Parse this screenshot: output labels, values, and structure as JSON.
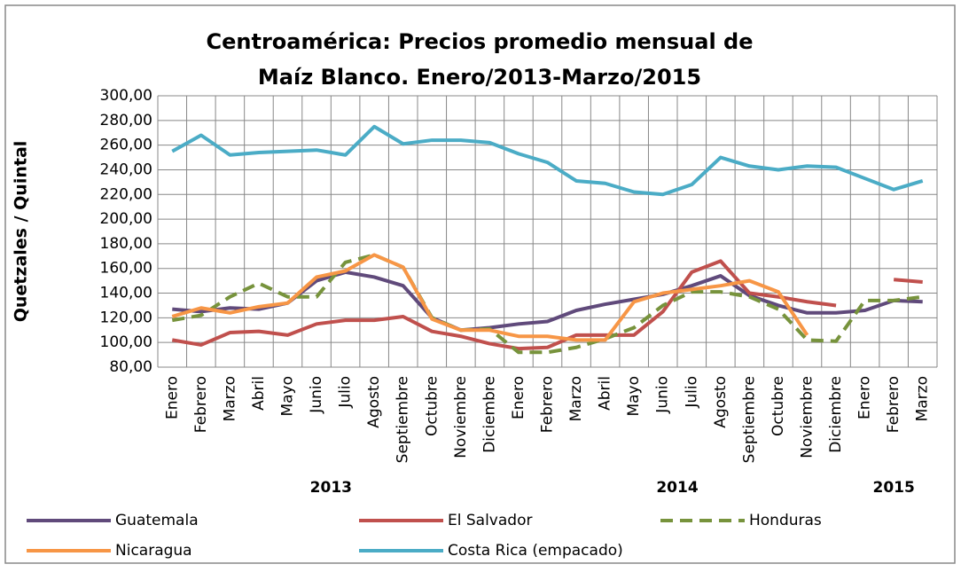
{
  "chart_data": {
    "type": "line",
    "title": [
      "Centroamérica: Precios promedio mensual de",
      "Maíz Blanco. Enero/2013-Marzo/2015"
    ],
    "y_label": "Quetzales / Quintal",
    "categories": [
      "Enero",
      "Febrero",
      "Marzo",
      "Abril",
      "Mayo",
      "Junio",
      "Julio",
      "Agosto",
      "Septiembre",
      "Octubre",
      "Noviembre",
      "Diciembre",
      "Enero",
      "Febrero",
      "Marzo",
      "Abril",
      "Mayo",
      "Junio",
      "Julio",
      "Agosto",
      "Septiembre",
      "Octubre",
      "Noviembre",
      "Diciembre",
      "Enero",
      "Febrero",
      "Marzo"
    ],
    "category_groups": [
      "2013",
      "2014",
      "2015"
    ],
    "series": [
      {
        "name": "Guatemala",
        "color": "#604a7b",
        "dashed": false,
        "values": [
          127,
          125,
          128,
          127,
          132,
          150,
          157,
          153,
          146,
          120,
          110,
          112,
          115,
          117,
          126,
          131,
          135,
          139,
          146,
          154,
          138,
          130,
          124,
          124,
          126,
          134,
          133
        ]
      },
      {
        "name": "El Salvador",
        "color": "#c0504d",
        "dashed": false,
        "values": [
          102,
          98,
          108,
          109,
          106,
          115,
          118,
          118,
          121,
          109,
          105,
          99,
          95,
          96,
          106,
          106,
          106,
          125,
          157,
          166,
          140,
          137,
          133,
          130,
          null,
          151,
          149
        ]
      },
      {
        "name": "Honduras",
        "color": "#77933c",
        "dashed": true,
        "values": [
          118,
          122,
          137,
          148,
          137,
          137,
          165,
          171,
          161,
          120,
          110,
          111,
          92,
          92,
          96,
          103,
          112,
          130,
          141,
          141,
          137,
          127,
          102,
          101,
          134,
          134,
          137
        ]
      },
      {
        "name": "Nicaragua",
        "color": "#f79646",
        "dashed": false,
        "values": [
          121,
          128,
          124,
          129,
          132,
          153,
          158,
          171,
          161,
          119,
          110,
          110,
          105,
          105,
          102,
          102,
          133,
          140,
          143,
          146,
          150,
          141,
          106,
          null,
          null,
          null,
          null
        ]
      },
      {
        "name": "Costa Rica (empacado)",
        "color": "#4bacc6",
        "dashed": false,
        "values": [
          255,
          268,
          252,
          254,
          255,
          256,
          252,
          275,
          261,
          264,
          264,
          262,
          253,
          246,
          231,
          229,
          222,
          220,
          228,
          250,
          243,
          240,
          243,
          242,
          233,
          224,
          231
        ]
      }
    ],
    "ylim": [
      80,
      300
    ],
    "yticks": [
      {
        "value": 80,
        "label": "80,00"
      },
      {
        "value": 100,
        "label": "100,00"
      },
      {
        "value": 120,
        "label": "120,00"
      },
      {
        "value": 140,
        "label": "140,00"
      },
      {
        "value": 160,
        "label": "160,00"
      },
      {
        "value": 180,
        "label": "180,00"
      },
      {
        "value": 200,
        "label": "200,00"
      },
      {
        "value": 220,
        "label": "220,00"
      },
      {
        "value": 240,
        "label": "240,00"
      },
      {
        "value": 260,
        "label": "260,00"
      },
      {
        "value": 280,
        "label": "280,00"
      },
      {
        "value": 300,
        "label": "300,00"
      }
    ],
    "grid": true,
    "legend": "bottom"
  }
}
